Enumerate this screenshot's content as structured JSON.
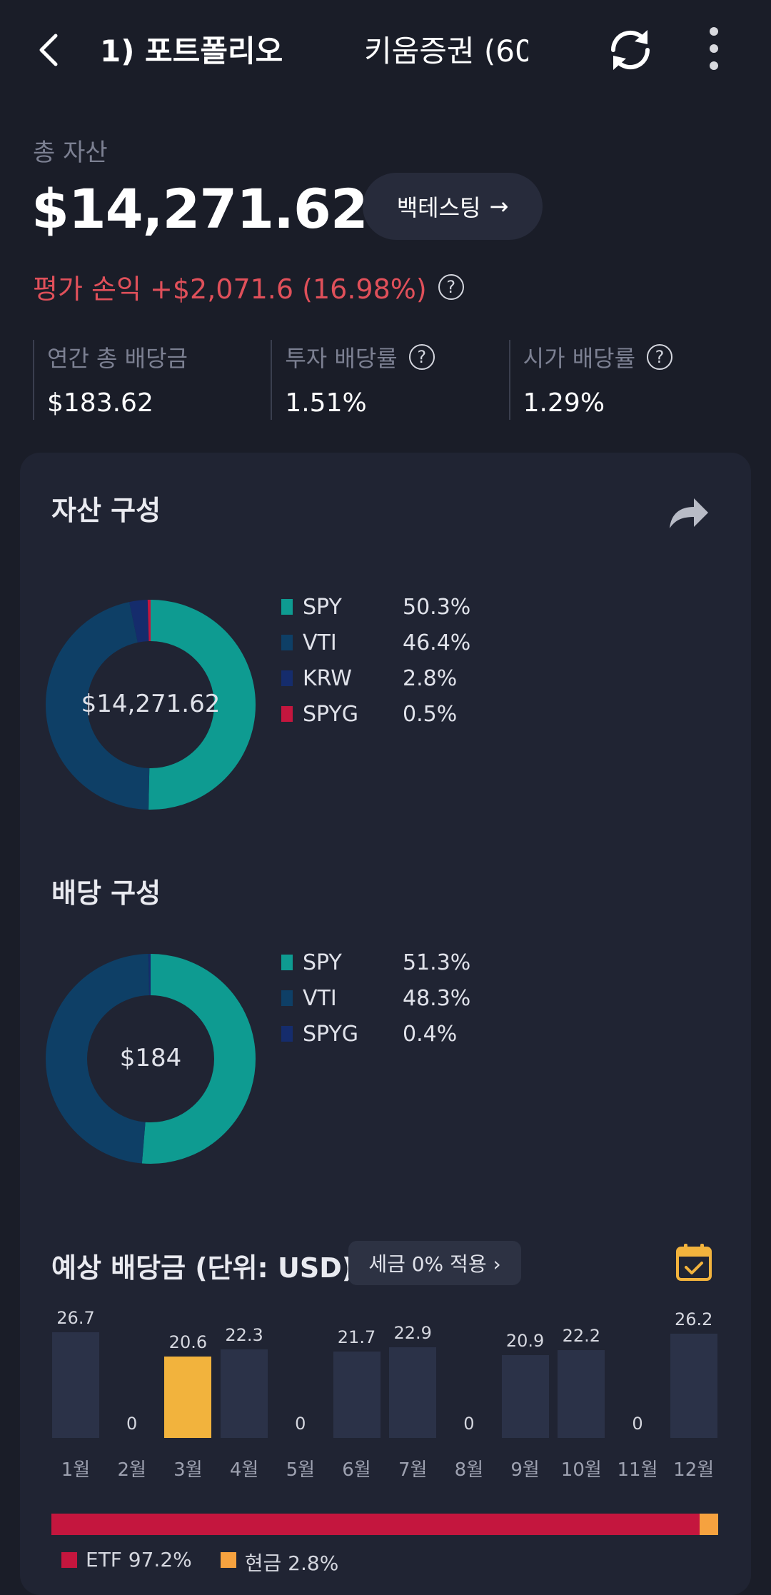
{
  "header": {
    "title": "1) 포트폴리오",
    "broker": "키움증권 (60",
    "icons": {
      "back": "chevron-left-icon",
      "sync": "sync-icon",
      "more": "more-vertical-icon"
    }
  },
  "summary": {
    "total_label": "총 자산",
    "total_value": "$14,271.62",
    "backtest_label": "백테스팅",
    "pnl_text": "평가 손익 +$2,071.6 (16.98%)",
    "stats": [
      {
        "label": "연간 총 배당금",
        "value": "$183.62",
        "help": false
      },
      {
        "label": "투자 배당률",
        "value": "1.51%",
        "help": true
      },
      {
        "label": "시가 배당률",
        "value": "1.29%",
        "help": true
      }
    ],
    "help_glyph": "?"
  },
  "asset_composition": {
    "title": "자산 구성",
    "center_label": "$14,271.62",
    "items": [
      {
        "name": "SPY",
        "pct_label": "50.3%",
        "value": 50.3,
        "color": "#0e9b91"
      },
      {
        "name": "VTI",
        "pct_label": "46.4%",
        "value": 46.4,
        "color": "#0e3f66"
      },
      {
        "name": "KRW",
        "pct_label": "2.8%",
        "value": 2.8,
        "color": "#152c6c"
      },
      {
        "name": "SPYG",
        "pct_label": "0.5%",
        "value": 0.5,
        "color": "#c4163e"
      }
    ]
  },
  "dividend_composition": {
    "title": "배당 구성",
    "center_label": "$184",
    "items": [
      {
        "name": "SPY",
        "pct_label": "51.3%",
        "value": 51.3,
        "color": "#0e9b91"
      },
      {
        "name": "VTI",
        "pct_label": "48.3%",
        "value": 48.3,
        "color": "#0e3f66"
      },
      {
        "name": "SPYG",
        "pct_label": "0.4%",
        "value": 0.4,
        "color": "#152c6c"
      }
    ]
  },
  "expected_dividends": {
    "title": "예상 배당금 (단위: USD)",
    "tax_button": "세금 0% 적용 ›",
    "icon": "calendar-check-icon"
  },
  "chart_data": {
    "type": "bar",
    "categories": [
      "1월",
      "2월",
      "3월",
      "4월",
      "5월",
      "6월",
      "7월",
      "8월",
      "9월",
      "10월",
      "11월",
      "12월"
    ],
    "values": [
      26.7,
      0,
      20.6,
      22.3,
      0,
      21.7,
      22.9,
      0,
      20.9,
      22.2,
      0,
      26.2
    ],
    "value_labels": [
      "26.7",
      "0",
      "20.6",
      "22.3",
      "0",
      "21.7",
      "22.9",
      "0",
      "20.9",
      "22.2",
      "0",
      "26.2"
    ],
    "highlight_index": 2,
    "colors": {
      "bar": "#2b3248",
      "highlight": "#f2b33d"
    },
    "ylim": [
      0,
      30
    ],
    "grid": false,
    "legend": "none"
  },
  "ratio": {
    "segments": [
      {
        "name": "ETF",
        "value": 97.2,
        "color": "#c4163e"
      },
      {
        "name": "현금",
        "value": 2.8,
        "color": "#f6a23f"
      }
    ],
    "legend_labels": [
      "ETF 97.2%",
      "현금 2.8%"
    ]
  }
}
